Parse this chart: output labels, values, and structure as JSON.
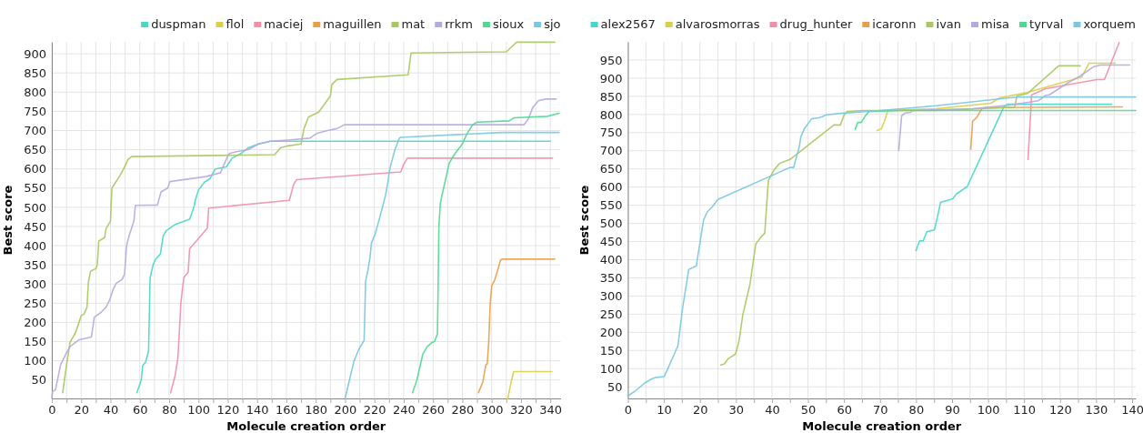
{
  "chart_data": [
    {
      "type": "line",
      "xlabel": "Molecule creation order",
      "ylabel": "Best score",
      "xlim": [
        0,
        347
      ],
      "ylim": [
        2,
        931
      ],
      "xticks": [
        0,
        {
          "value": 10,
          "label": null
        },
        20,
        {
          "value": 30,
          "label": null
        },
        40,
        {
          "value": 50,
          "label": null
        },
        60,
        {
          "value": 70,
          "label": null
        },
        80,
        {
          "value": 90,
          "label": null
        },
        100,
        {
          "value": 110,
          "label": null
        },
        120,
        {
          "value": 130,
          "label": null
        },
        140,
        {
          "value": 150,
          "label": null
        },
        160,
        {
          "value": 170,
          "label": null
        },
        180,
        {
          "value": 190,
          "label": null
        },
        200,
        {
          "value": 210,
          "label": null
        },
        220,
        {
          "value": 230,
          "label": null
        },
        240,
        {
          "value": 250,
          "label": null
        },
        260,
        {
          "value": 270,
          "label": null
        },
        280,
        {
          "value": 290,
          "label": null
        },
        300,
        {
          "value": 310,
          "label": null
        },
        320,
        {
          "value": 330,
          "label": null
        },
        340
      ],
      "yticks": [
        50,
        100,
        150,
        200,
        250,
        300,
        350,
        400,
        450,
        500,
        550,
        600,
        650,
        700,
        750,
        800,
        850,
        900
      ],
      "grid": true,
      "legend": "top right",
      "marker": "none",
      "line_style": "solid",
      "series": [
        {
          "name": "duspman",
          "color": "#48d8c8",
          "x": [
            58,
            61,
            62,
            64,
            66,
            67,
            69,
            70.6,
            74,
            76,
            78,
            84,
            94,
            97,
            98,
            100,
            104,
            108,
            111.5,
            119,
            123,
            129,
            134,
            141,
            149,
            340
          ],
          "values": [
            17,
            50,
            88,
            97,
            126,
            316,
            349,
            364,
            378,
            426,
            439,
            455,
            469,
            502,
            520,
            545,
            565,
            575,
            600,
            605,
            628,
            640,
            655,
            665,
            672,
            672
          ]
        },
        {
          "name": "flol",
          "color": "#d8d048",
          "x": [
            311,
            313,
            315,
            341
          ],
          "values": [
            2,
            40,
            72,
            72
          ]
        },
        {
          "name": "maciej",
          "color": "#f090a8",
          "x": [
            81,
            84,
            86,
            88,
            90,
            93,
            94,
            106,
            107,
            162,
            165,
            167,
            238,
            240,
            242.5,
            341.5
          ],
          "values": [
            17,
            60,
            108,
            250,
            317,
            331,
            392,
            445,
            498,
            518,
            560,
            572,
            592,
            612,
            628,
            628
          ]
        },
        {
          "name": "maguillen",
          "color": "#e8a048",
          "x": [
            291,
            294,
            296,
            297,
            298,
            299,
            300,
            302,
            304,
            306,
            307,
            343
          ],
          "values": [
            17,
            45,
            90,
            92,
            150,
            250,
            295,
            310,
            335,
            362,
            365,
            365
          ]
        },
        {
          "name": "mat",
          "color": "#a8c860",
          "x": [
            7.4,
            10,
            12.4,
            16,
            17.3,
            20,
            22,
            24,
            25,
            26.5,
            30,
            31,
            32,
            36,
            37,
            40,
            41,
            46,
            49,
            52,
            54.5,
            152,
            156,
            161,
            170,
            172,
            175,
            182,
            190,
            191,
            194.5,
            243,
            245,
            310,
            317,
            343
          ],
          "values": [
            17,
            88,
            148,
            172,
            186,
            217,
            222,
            240,
            307,
            334,
            340,
            350,
            412,
            421,
            445,
            464,
            550,
            580,
            600,
            625,
            632,
            637,
            655,
            660,
            665,
            705,
            735,
            748,
            790,
            820,
            833,
            845,
            902,
            905,
            930,
            930
          ]
        },
        {
          "name": "rrkm",
          "color": "#b8a8e0",
          "x": [
            0,
            0.5,
            2.5,
            6,
            10,
            12.4,
            18.6,
            27,
            29,
            33.5,
            37,
            39.6,
            42,
            44,
            48,
            49.6,
            51,
            52.5,
            56,
            57,
            72,
            74.5,
            79,
            80.5,
            105,
            115,
            119,
            121,
            126,
            134,
            141,
            149,
            161,
            176,
            181,
            188,
            194.5,
            199.5,
            322,
            325,
            328,
            332,
            337,
            344
          ],
          "values": [
            2,
            20,
            25,
            90,
            121,
            137,
            155,
            162,
            214,
            226,
            240,
            260,
            288,
            302,
            312,
            326,
            400,
            423,
            465,
            505,
            506,
            540,
            550,
            567,
            580,
            590,
            625,
            640,
            645,
            650,
            665,
            672,
            675,
            680,
            693,
            700,
            705,
            715,
            715,
            730,
            760,
            778,
            782,
            782
          ]
        },
        {
          "name": "sioux",
          "color": "#50d890",
          "x": [
            246,
            249,
            253,
            256,
            259,
            261,
            262,
            263,
            263.5,
            264,
            265,
            266,
            269,
            271,
            275,
            280,
            283,
            287,
            290,
            312,
            315,
            338,
            346
          ],
          "values": [
            17,
            50,
            117,
            137,
            147,
            150,
            160,
            170,
            300,
            450,
            510,
            530,
            580,
            615,
            640,
            665,
            690,
            715,
            722,
            725,
            733,
            737,
            745
          ]
        },
        {
          "name": "sjo",
          "color": "#78c8e0",
          "x": [
            200,
            203,
            206,
            209.5,
            213,
            214,
            215.6,
            217,
            218,
            220.6,
            223,
            225,
            227.5,
            229,
            230.5,
            234,
            237,
            238,
            307,
            346
          ],
          "values": [
            2,
            50,
            98,
            131,
            153,
            307,
            336,
            369,
            407,
            431,
            464,
            493,
            530,
            560,
            600,
            650,
            680,
            682,
            695,
            695
          ]
        }
      ]
    },
    {
      "type": "line",
      "xlabel": "Molecule creation order",
      "ylabel": "Best score",
      "xlim": [
        0,
        141
      ],
      "ylim": [
        18,
        1000
      ],
      "xticks": [
        0,
        {
          "value": 5,
          "label": null
        },
        10,
        {
          "value": 15,
          "label": null
        },
        20,
        {
          "value": 25,
          "label": null
        },
        30,
        {
          "value": 35,
          "label": null
        },
        40,
        {
          "value": 45,
          "label": null
        },
        50,
        {
          "value": 55,
          "label": null
        },
        60,
        {
          "value": 65,
          "label": null
        },
        70,
        {
          "value": 75,
          "label": null
        },
        80,
        {
          "value": 85,
          "label": null
        },
        90,
        {
          "value": 95,
          "label": null
        },
        100,
        {
          "value": 105,
          "label": null
        },
        110,
        {
          "value": 115,
          "label": null
        },
        120,
        {
          "value": 125,
          "label": null
        },
        130,
        {
          "value": 135,
          "label": null
        },
        140
      ],
      "yticks": [
        50,
        100,
        150,
        200,
        250,
        300,
        350,
        400,
        450,
        500,
        550,
        600,
        650,
        700,
        750,
        800,
        850,
        900,
        950
      ],
      "grid": true,
      "legend": "top right",
      "marker": "none",
      "line_style": "solid",
      "series": [
        {
          "name": "alex2567",
          "color": "#48d8c8",
          "x": [
            80,
            81,
            82,
            83,
            85.1,
            86,
            86.8,
            90.2,
            91.2,
            94.2,
            104.4,
            105.4,
            134.3
          ],
          "values": [
            425,
            452,
            452,
            477,
            482,
            520,
            558,
            568,
            581,
            601,
            821,
            828,
            828
          ]
        },
        {
          "name": "alvarosmorras",
          "color": "#d8d048",
          "x": [
            69.2,
            70.4,
            71.2,
            72.2,
            85.6,
            100.8,
            103.3,
            111,
            126,
            128,
            135.3
          ],
          "values": [
            756,
            761,
            781,
            811,
            816,
            831,
            846,
            861,
            903,
            941,
            941
          ]
        },
        {
          "name": "drug_hunter",
          "color": "#f090a8",
          "x": [
            111.1,
            112.1,
            116,
            130.2,
            132.3,
            136.4
          ],
          "values": [
            676,
            854,
            871,
            896,
            896,
            998
          ]
        },
        {
          "name": "icaronn",
          "color": "#e8a048",
          "x": [
            95.2,
            95.7,
            96.8,
            98.3,
            99.3,
            137.3
          ],
          "values": [
            704,
            781,
            791,
            816,
            819,
            821
          ]
        },
        {
          "name": "ivan",
          "color": "#a8c860",
          "x": [
            25.8,
            26.8,
            27.9,
            29.9,
            30.9,
            31.9,
            33.9,
            35.5,
            37,
            38,
            39,
            40.5,
            42,
            43,
            45,
            57.2,
            59,
            60,
            60.8,
            65.3,
            85.6,
            107.4,
            108,
            111,
            119.6,
            125.6
          ],
          "values": [
            110,
            113,
            128,
            140,
            178,
            248,
            333,
            443,
            463,
            473,
            618,
            646,
            664,
            669,
            676,
            771,
            771,
            798,
            808,
            811,
            811,
            820,
            851,
            858,
            934,
            934
          ]
        },
        {
          "name": "misa",
          "color": "#b8a8e0",
          "x": [
            75.2,
            76,
            77,
            78.5,
            79,
            95.7,
            106,
            114,
            116,
            117,
            122,
            125.6,
            129.2,
            131.2,
            139.3
          ],
          "values": [
            701,
            796,
            804,
            806,
            811,
            816,
            826,
            838,
            853,
            854,
            886,
            906,
            931,
            936,
            936
          ]
        },
        {
          "name": "tyrval",
          "color": "#50d890",
          "x": [
            63.1,
            63.8,
            64.8,
            65.9,
            66.9,
            75.5,
            141
          ],
          "values": [
            759,
            778,
            778,
            796,
            808,
            811,
            811
          ]
        },
        {
          "name": "xorquem",
          "color": "#78c8e0",
          "x": [
            0,
            2,
            4.6,
            6.6,
            8,
            10,
            11,
            12.2,
            13.9,
            15.2,
            16.9,
            19,
            21,
            22,
            23.3,
            25,
            45,
            46,
            47.6,
            48,
            49,
            51,
            53,
            54,
            55,
            59,
            70,
            85.6,
            106,
            109,
            141
          ],
          "values": [
            25,
            38,
            60,
            72,
            76,
            78,
            98,
            125,
            163,
            268,
            373,
            383,
            509,
            531,
            544,
            566,
            654,
            654,
            711,
            738,
            761,
            788,
            791,
            794,
            799,
            803,
            811,
            824,
            846,
            848,
            848
          ]
        }
      ]
    }
  ]
}
